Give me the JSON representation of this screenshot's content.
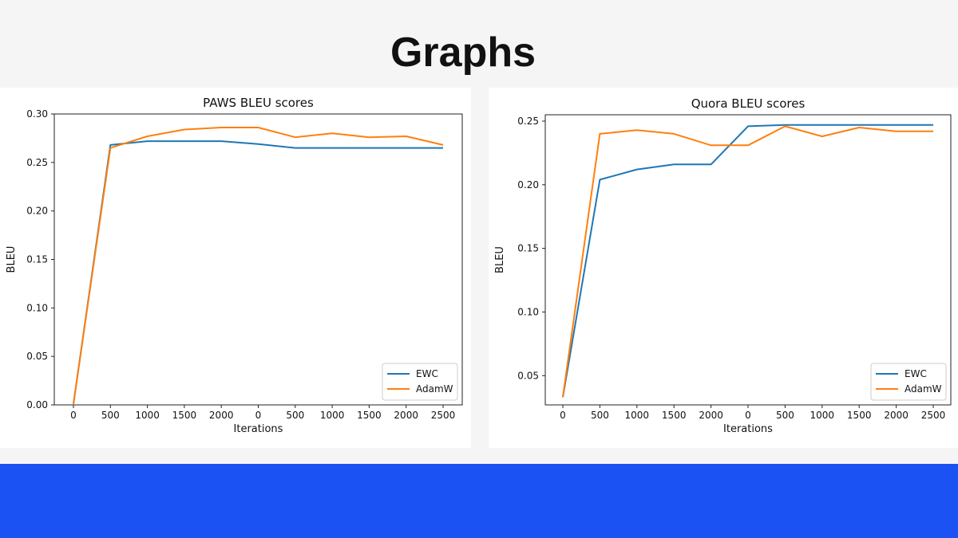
{
  "slide": {
    "title": "Graphs"
  },
  "colors": {
    "ewc": "#1f77b4",
    "adamw": "#ff7f0e",
    "footer": "#1a52f4",
    "background": "#f5f5f5"
  },
  "chart_data": [
    {
      "type": "line",
      "title": "PAWS BLEU scores",
      "xlabel": "Iterations",
      "ylabel": "BLEU",
      "categories": [
        "0",
        "500",
        "1000",
        "1500",
        "2000",
        "0",
        "500",
        "1000",
        "1500",
        "2000",
        "2500"
      ],
      "ylim": [
        0,
        0.3
      ],
      "yticks": [
        "0.00",
        "0.05",
        "0.10",
        "0.15",
        "0.20",
        "0.25",
        "0.30"
      ],
      "grid": false,
      "legend": "bottom-right",
      "series": [
        {
          "name": "EWC",
          "values": [
            0.001,
            0.268,
            0.272,
            0.272,
            0.272,
            0.269,
            0.265,
            0.265,
            0.265,
            0.265,
            0.265
          ]
        },
        {
          "name": "AdamW",
          "values": [
            0.001,
            0.265,
            0.277,
            0.284,
            0.286,
            0.286,
            0.276,
            0.28,
            0.276,
            0.277,
            0.268
          ]
        }
      ]
    },
    {
      "type": "line",
      "title": "Quora BLEU scores",
      "xlabel": "Iterations",
      "ylabel": "BLEU",
      "categories": [
        "0",
        "500",
        "1000",
        "1500",
        "2000",
        "0",
        "500",
        "1000",
        "1500",
        "2000",
        "2500"
      ],
      "ylim": [
        0.027,
        0.255
      ],
      "yticks": [
        "0.05",
        "0.10",
        "0.15",
        "0.20",
        "0.25"
      ],
      "grid": false,
      "legend": "bottom-right",
      "series": [
        {
          "name": "EWC",
          "values": [
            0.033,
            0.204,
            0.212,
            0.216,
            0.216,
            0.246,
            0.247,
            0.247,
            0.247,
            0.247,
            0.247
          ]
        },
        {
          "name": "AdamW",
          "values": [
            0.033,
            0.24,
            0.243,
            0.24,
            0.231,
            0.231,
            0.246,
            0.238,
            0.245,
            0.242,
            0.242
          ]
        }
      ]
    }
  ]
}
